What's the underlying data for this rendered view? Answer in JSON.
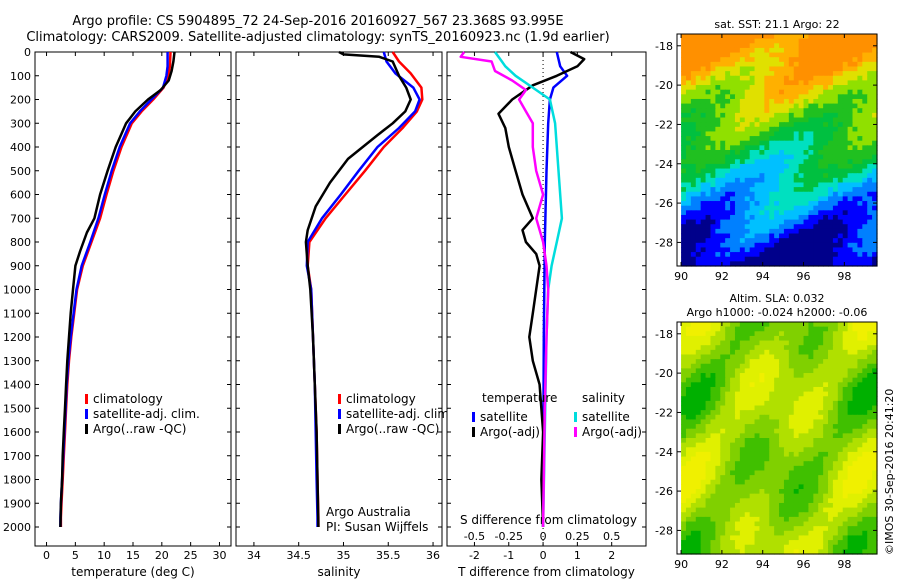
{
  "header": {
    "line1": "Argo profile: CS 5904895_72 24-Sep-2016 20160927_567 23.368S 93.995E",
    "line2": "Climatology: CARS2009. Satellite-adjusted climatology: synTS_20160923.nc (1.9d earlier)"
  },
  "depth_axis": {
    "ticks": [
      0,
      100,
      200,
      300,
      400,
      500,
      600,
      700,
      800,
      900,
      1000,
      1100,
      1200,
      1300,
      1400,
      1500,
      1600,
      1700,
      1800,
      1900,
      2000
    ],
    "range": [
      0,
      2080
    ]
  },
  "chart_data": [
    {
      "type": "line",
      "name": "temperature_profile",
      "xlabel": "temperature (deg C)",
      "xticks": [
        0,
        5,
        10,
        15,
        20,
        25,
        30
      ],
      "xlim": [
        -2,
        32
      ],
      "depth_inverted": true,
      "legend": {
        "placement": "lower-left",
        "entries": [
          "climatology",
          "satellite-adj. clim.",
          "Argo(..raw -QC)"
        ]
      },
      "series": [
        {
          "name": "climatology",
          "color": "#ff0000",
          "points": [
            [
              21.5,
              0
            ],
            [
              21.4,
              60
            ],
            [
              21.1,
              100
            ],
            [
              20.3,
              150
            ],
            [
              18.5,
              200
            ],
            [
              16.5,
              250
            ],
            [
              14.8,
              300
            ],
            [
              13.0,
              400
            ],
            [
              11.6,
              500
            ],
            [
              10.4,
              600
            ],
            [
              9.3,
              700
            ],
            [
              7.8,
              800
            ],
            [
              6.3,
              900
            ],
            [
              5.3,
              1000
            ],
            [
              4.8,
              1100
            ],
            [
              4.3,
              1200
            ],
            [
              3.9,
              1300
            ],
            [
              3.6,
              1400
            ],
            [
              3.4,
              1500
            ],
            [
              3.2,
              1600
            ],
            [
              3.0,
              1700
            ],
            [
              2.8,
              1800
            ],
            [
              2.6,
              1900
            ],
            [
              2.5,
              1960
            ],
            [
              2.5,
              2000
            ]
          ]
        },
        {
          "name": "satellite-adj. clim.",
          "color": "#0000ff",
          "points": [
            [
              21.0,
              0
            ],
            [
              21.0,
              60
            ],
            [
              20.8,
              100
            ],
            [
              20.2,
              150
            ],
            [
              18.2,
              200
            ],
            [
              16.2,
              250
            ],
            [
              14.5,
              300
            ],
            [
              12.7,
              400
            ],
            [
              11.3,
              500
            ],
            [
              10.1,
              600
            ],
            [
              9.0,
              700
            ],
            [
              7.6,
              800
            ],
            [
              6.1,
              900
            ],
            [
              5.2,
              1000
            ],
            [
              4.7,
              1100
            ],
            [
              4.2,
              1200
            ],
            [
              3.8,
              1300
            ],
            [
              3.5,
              1400
            ],
            [
              3.3,
              1500
            ],
            [
              3.1,
              1600
            ],
            [
              2.9,
              1700
            ],
            [
              2.7,
              1800
            ],
            [
              2.5,
              1900
            ],
            [
              2.4,
              1960
            ],
            [
              2.4,
              2000
            ]
          ]
        },
        {
          "name": "Argo(..raw -QC)",
          "color": "#000000",
          "points": [
            [
              22.2,
              0
            ],
            [
              22.0,
              40
            ],
            [
              21.7,
              80
            ],
            [
              21.2,
              120
            ],
            [
              19.8,
              160
            ],
            [
              17.6,
              200
            ],
            [
              15.4,
              250
            ],
            [
              13.8,
              300
            ],
            [
              12.0,
              400
            ],
            [
              10.6,
              500
            ],
            [
              9.3,
              600
            ],
            [
              8.3,
              700
            ],
            [
              7.0,
              760
            ],
            [
              5.8,
              840
            ],
            [
              5.0,
              900
            ],
            [
              4.6,
              1000
            ],
            [
              4.2,
              1100
            ],
            [
              3.9,
              1200
            ],
            [
              3.6,
              1300
            ],
            [
              3.4,
              1400
            ],
            [
              3.2,
              1500
            ],
            [
              3.0,
              1600
            ],
            [
              2.8,
              1700
            ],
            [
              2.7,
              1800
            ],
            [
              2.5,
              1900
            ],
            [
              2.4,
              2000
            ]
          ]
        }
      ]
    },
    {
      "type": "line",
      "name": "salinity_profile",
      "xlabel": "salinity",
      "xticks": [
        34,
        34.5,
        35,
        35.5,
        36
      ],
      "xlim": [
        33.8,
        36.1
      ],
      "depth_inverted": true,
      "legend": {
        "placement": "lower-center",
        "entries": [
          "climatology",
          "satellite-adj. clim.",
          "Argo(..raw -QC)"
        ]
      },
      "annotation": [
        "Argo Australia",
        "PI: Susan Wijffels"
      ],
      "series": [
        {
          "name": "climatology",
          "color": "#ff0000",
          "points": [
            [
              35.55,
              0
            ],
            [
              35.62,
              40
            ],
            [
              35.75,
              90
            ],
            [
              35.87,
              150
            ],
            [
              35.88,
              200
            ],
            [
              35.82,
              250
            ],
            [
              35.66,
              320
            ],
            [
              35.45,
              400
            ],
            [
              35.24,
              500
            ],
            [
              35.02,
              600
            ],
            [
              34.8,
              700
            ],
            [
              34.62,
              800
            ],
            [
              34.6,
              900
            ],
            [
              34.64,
              1000
            ],
            [
              34.66,
              1200
            ],
            [
              34.68,
              1400
            ],
            [
              34.7,
              1600
            ],
            [
              34.71,
              1800
            ],
            [
              34.72,
              1960
            ],
            [
              34.72,
              2000
            ]
          ]
        },
        {
          "name": "satellite-adj. clim.",
          "color": "#0000ff",
          "points": [
            [
              35.45,
              0
            ],
            [
              35.48,
              40
            ],
            [
              35.58,
              90
            ],
            [
              35.78,
              150
            ],
            [
              35.85,
              200
            ],
            [
              35.8,
              250
            ],
            [
              35.62,
              320
            ],
            [
              35.38,
              400
            ],
            [
              35.17,
              500
            ],
            [
              34.97,
              600
            ],
            [
              34.76,
              700
            ],
            [
              34.6,
              800
            ],
            [
              34.59,
              900
            ],
            [
              34.64,
              1000
            ],
            [
              34.66,
              1200
            ],
            [
              34.68,
              1400
            ],
            [
              34.69,
              1600
            ],
            [
              34.7,
              1800
            ],
            [
              34.71,
              1960
            ],
            [
              34.71,
              2000
            ]
          ]
        },
        {
          "name": "Argo(..raw -QC)",
          "color": "#000000",
          "points": [
            [
              34.95,
              0
            ],
            [
              35.0,
              10
            ],
            [
              35.4,
              20
            ],
            [
              35.55,
              40
            ],
            [
              35.62,
              100
            ],
            [
              35.7,
              150
            ],
            [
              35.75,
              200
            ],
            [
              35.69,
              250
            ],
            [
              35.55,
              300
            ],
            [
              35.38,
              350
            ],
            [
              35.05,
              450
            ],
            [
              34.85,
              550
            ],
            [
              34.69,
              650
            ],
            [
              34.6,
              750
            ],
            [
              34.58,
              800
            ],
            [
              34.6,
              900
            ],
            [
              34.63,
              1000
            ],
            [
              34.66,
              1200
            ],
            [
              34.68,
              1400
            ],
            [
              34.7,
              1600
            ],
            [
              34.71,
              1800
            ],
            [
              34.72,
              2000
            ]
          ]
        }
      ]
    },
    {
      "type": "line",
      "name": "difference_profile",
      "xlabel": "T difference from climatology",
      "xlabel_top": "S difference from climatology",
      "xticks": [
        -2,
        -1,
        0,
        1,
        2
      ],
      "secondary_ticks": [
        {
          "label": "-0.5",
          "t": -2
        },
        {
          "label": "-0.25",
          "t": -1
        },
        {
          "label": "0",
          "t": 0
        },
        {
          "label": "0.25",
          "t": 1
        },
        {
          "label": "0.5",
          "t": 2
        }
      ],
      "xlim": [
        -2.8,
        3.0
      ],
      "depth_inverted": true,
      "legend": {
        "placement": "lower-center",
        "groups": [
          "temperature",
          "salinity"
        ],
        "entries": [
          "satellite",
          "Argo(-adj)",
          "satellite",
          "Argo(-adj)"
        ]
      },
      "series": [
        {
          "name": "temperature satellite",
          "color": "#0000ff",
          "points": [
            [
              0.4,
              0
            ],
            [
              0.5,
              60
            ],
            [
              0.7,
              100
            ],
            [
              0.3,
              150
            ],
            [
              0.2,
              200
            ],
            [
              0.15,
              300
            ],
            [
              0.1,
              500
            ],
            [
              0.05,
              800
            ],
            [
              0.02,
              1200
            ],
            [
              0.01,
              1600
            ],
            [
              0.0,
              2000
            ]
          ]
        },
        {
          "name": "temperature Argo(-adj)",
          "color": "#000000",
          "points": [
            [
              0.8,
              0
            ],
            [
              1.2,
              30
            ],
            [
              1.0,
              60
            ],
            [
              0.4,
              100
            ],
            [
              -0.3,
              140
            ],
            [
              -0.9,
              200
            ],
            [
              -1.3,
              260
            ],
            [
              -1.1,
              320
            ],
            [
              -1.0,
              400
            ],
            [
              -0.8,
              500
            ],
            [
              -0.6,
              600
            ],
            [
              -0.3,
              700
            ],
            [
              -0.6,
              750
            ],
            [
              -0.5,
              800
            ],
            [
              -0.2,
              850
            ],
            [
              -0.1,
              900
            ],
            [
              -0.2,
              1000
            ],
            [
              -0.3,
              1100
            ],
            [
              -0.4,
              1200
            ],
            [
              -0.3,
              1300
            ],
            [
              -0.1,
              1400
            ],
            [
              0.0,
              1600
            ],
            [
              -0.05,
              1800
            ],
            [
              0.0,
              2000
            ]
          ]
        },
        {
          "name": "salinity satellite",
          "color": "#00dddd",
          "points": [
            [
              -1.4,
              0
            ],
            [
              -1.2,
              40
            ],
            [
              -1.1,
              60
            ],
            [
              -0.8,
              100
            ],
            [
              -0.2,
              160
            ],
            [
              0.2,
              200
            ],
            [
              0.35,
              300
            ],
            [
              0.45,
              500
            ],
            [
              0.55,
              700
            ],
            [
              0.4,
              800
            ],
            [
              0.25,
              900
            ],
            [
              0.15,
              1000
            ],
            [
              0.1,
              1200
            ],
            [
              0.05,
              1600
            ],
            [
              0.0,
              2000
            ]
          ]
        },
        {
          "name": "salinity Argo(-adj)",
          "color": "#ff00ff",
          "points": [
            [
              -2.3,
              0
            ],
            [
              -2.4,
              20
            ],
            [
              -1.5,
              40
            ],
            [
              -1.4,
              80
            ],
            [
              -0.9,
              120
            ],
            [
              -0.5,
              160
            ],
            [
              -0.7,
              200
            ],
            [
              -0.5,
              250
            ],
            [
              -0.3,
              300
            ],
            [
              -0.3,
              400
            ],
            [
              -0.2,
              500
            ],
            [
              0.0,
              600
            ],
            [
              -0.2,
              700
            ],
            [
              0.0,
              800
            ],
            [
              0.1,
              900
            ],
            [
              0.15,
              1000
            ],
            [
              0.1,
              1200
            ],
            [
              0.05,
              1500
            ],
            [
              0.0,
              2000
            ]
          ]
        }
      ]
    },
    {
      "type": "heatmap",
      "name": "sst_map",
      "title": "sat. SST: 21.1  Argo: 22",
      "xticks": [
        90,
        92,
        94,
        96,
        98
      ],
      "yticks": [
        -18,
        -20,
        -22,
        -24,
        -26,
        -28
      ],
      "xlim": [
        89.8,
        99.6
      ],
      "ylim": [
        -29.2,
        -17.4
      ],
      "colors": [
        "#00008b",
        "#0000ff",
        "#0080ff",
        "#00c0ff",
        "#00e0c0",
        "#00c040",
        "#20c020",
        "#90e000",
        "#e0e000",
        "#ffb000",
        "#ff9000"
      ]
    },
    {
      "type": "heatmap",
      "name": "sla_map",
      "title": "Altim. SLA: 0.032",
      "subtitle": "Argo h1000: -0.024  h2000: -0.06",
      "xticks": [
        90,
        92,
        94,
        96,
        98
      ],
      "yticks": [
        -18,
        -20,
        -22,
        -24,
        -26,
        -28
      ],
      "xlim": [
        89.8,
        99.6
      ],
      "ylim": [
        -29.2,
        -17.4
      ],
      "colors": [
        "#00b000",
        "#40c000",
        "#80d000",
        "#b0e000",
        "#e0f000",
        "#f0f000"
      ]
    }
  ],
  "credit": "©IMOS 30-Sep-2016 20:41:20"
}
